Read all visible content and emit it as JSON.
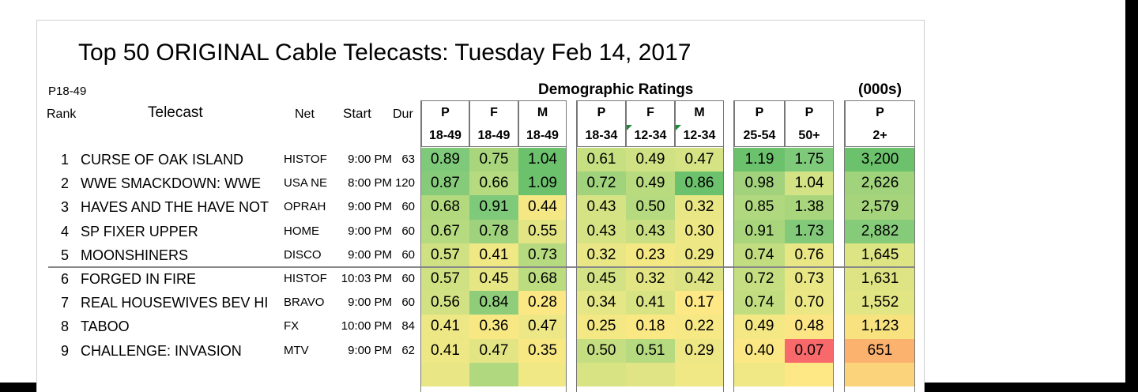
{
  "title": "Top 50 ORIGINAL Cable Telecasts:  Tuesday Feb 14, 2017",
  "sort_label": "P18-49",
  "group_demo": "Demographic Ratings",
  "group_000s": "(000s)",
  "col_labels": {
    "rank": "Rank",
    "telecast": "Telecast",
    "net": "Net",
    "start": "Start",
    "dur": "Dur"
  },
  "demo_columns": [
    {
      "top": "P",
      "bottom": "18-49"
    },
    {
      "top": "F",
      "bottom": "18-49"
    },
    {
      "top": "M",
      "bottom": "18-49"
    },
    {
      "top": "P",
      "bottom": "18-34"
    },
    {
      "top": "F",
      "bottom": "12-34"
    },
    {
      "top": "M",
      "bottom": "12-34"
    },
    {
      "top": "P",
      "bottom": "25-54"
    },
    {
      "top": "P",
      "bottom": "50+"
    },
    {
      "top": "P",
      "bottom": "2+"
    }
  ],
  "rows": [
    {
      "rank": "1",
      "telecast": "CURSE OF OAK ISLAND",
      "net": "HISTOF",
      "start": "9:00 PM",
      "dur": "63",
      "values": [
        "0.89",
        "0.75",
        "1.04",
        "0.61",
        "0.49",
        "0.47",
        "1.19",
        "1.75",
        "3,200"
      ],
      "colors": [
        "#7fc97a",
        "#a9d67d",
        "#6cc26c",
        "#c6df81",
        "#d0e183",
        "#d6e384",
        "#6cc26c",
        "#7fc97a",
        "#6cc26c"
      ]
    },
    {
      "rank": "2",
      "telecast": "WWE SMACKDOWN: WWE",
      "net": "USA NE",
      "start": "8:00 PM",
      "dur": "120",
      "values": [
        "0.87",
        "0.66",
        "1.09",
        "0.72",
        "0.49",
        "0.86",
        "0.98",
        "1.04",
        "2,626"
      ],
      "colors": [
        "#86cb7a",
        "#b6da7f",
        "#6cc26c",
        "#a0d37c",
        "#b9db7f",
        "#6cc26c",
        "#a2d37c",
        "#d2e284",
        "#a0d37c"
      ]
    },
    {
      "rank": "3",
      "telecast": "HAVES AND THE HAVE NOT",
      "net": "OPRAH",
      "start": "9:00 PM",
      "dur": "60",
      "values": [
        "0.68",
        "0.91",
        "0.44",
        "0.43",
        "0.50",
        "0.32",
        "0.85",
        "1.38",
        "2,579"
      ],
      "colors": [
        "#b3d97f",
        "#7fc97a",
        "#f5e884",
        "#d6e384",
        "#b6da7f",
        "#e9e785",
        "#b0d87e",
        "#a9d67d",
        "#a6d47d"
      ]
    },
    {
      "rank": "4",
      "telecast": "SP FIXER UPPER",
      "net": "HOME",
      "start": "9:00 PM",
      "dur": "60",
      "values": [
        "0.67",
        "0.78",
        "0.55",
        "0.43",
        "0.43",
        "0.30",
        "0.91",
        "1.73",
        "2,882"
      ],
      "colors": [
        "#b6da7f",
        "#9fd27c",
        "#e3e585",
        "#d6e384",
        "#c9df81",
        "#ede785",
        "#a9d67d",
        "#82ca7a",
        "#86cb7a"
      ]
    },
    {
      "rank": "5",
      "telecast": "MOONSHINERS",
      "net": "DISCO",
      "start": "9:00 PM",
      "dur": "60",
      "values": [
        "0.57",
        "0.41",
        "0.73",
        "0.32",
        "0.23",
        "0.29",
        "0.74",
        "0.76",
        "1,645"
      ],
      "colors": [
        "#cfe182",
        "#f0e785",
        "#b6da7f",
        "#e8e685",
        "#f4e884",
        "#eee785",
        "#c2dd80",
        "#e8e685",
        "#dde484"
      ]
    },
    {
      "rank": "6",
      "telecast": "FORGED IN FIRE",
      "net": "HISTOF",
      "start": "10:03 PM",
      "dur": "60",
      "values": [
        "0.57",
        "0.45",
        "0.68",
        "0.45",
        "0.32",
        "0.42",
        "0.72",
        "0.73",
        "1,631"
      ],
      "colors": [
        "#cfe182",
        "#e6e685",
        "#bcdc80",
        "#d3e284",
        "#e3e585",
        "#dbe384",
        "#c5de81",
        "#e9e785",
        "#dee484"
      ]
    },
    {
      "rank": "7",
      "telecast": "REAL HOUSEWIVES BEV HI",
      "net": "BRAVO",
      "start": "9:00 PM",
      "dur": "60",
      "values": [
        "0.56",
        "0.84",
        "0.28",
        "0.34",
        "0.41",
        "0.17",
        "0.74",
        "0.70",
        "1,552"
      ],
      "colors": [
        "#d1e183",
        "#8fcd7b",
        "#fbe885",
        "#e5e685",
        "#d8e384",
        "#fde885",
        "#c2dd80",
        "#ece785",
        "#e1e584"
      ]
    },
    {
      "rank": "8",
      "telecast": "TABOO",
      "net": "FX",
      "start": "10:00 PM",
      "dur": "84",
      "values": [
        "0.41",
        "0.36",
        "0.47",
        "0.25",
        "0.18",
        "0.22",
        "0.49",
        "0.48",
        "1,123"
      ],
      "colors": [
        "#eee785",
        "#f7e884",
        "#eee785",
        "#f3e884",
        "#fae885",
        "#f6e884",
        "#f3e884",
        "#fce584",
        "#f7e27f"
      ]
    },
    {
      "rank": "9",
      "telecast": "CHALLENGE: INVASION",
      "net": "MTV",
      "start": "9:00 PM",
      "dur": "62",
      "values": [
        "0.41",
        "0.47",
        "0.35",
        "0.50",
        "0.51",
        "0.29",
        "0.40",
        "0.07",
        "651"
      ],
      "colors": [
        "#eee785",
        "#e3e585",
        "#f8e884",
        "#c5de81",
        "#b6da7f",
        "#eee785",
        "#fbe885",
        "#f8696b",
        "#fbb26f"
      ]
    },
    {
      "rank": "",
      "telecast": "",
      "net": "",
      "start": "",
      "dur": "",
      "values": [
        "",
        "",
        "",
        "",
        "",
        "",
        "",
        "",
        ""
      ],
      "colors": [
        "#e9e785",
        "#b0d87e",
        "#f0e785",
        "#d8e384",
        "#e0e485",
        "#f0e785",
        "#f0e785",
        "#fde885",
        "#fbd37a"
      ]
    }
  ]
}
